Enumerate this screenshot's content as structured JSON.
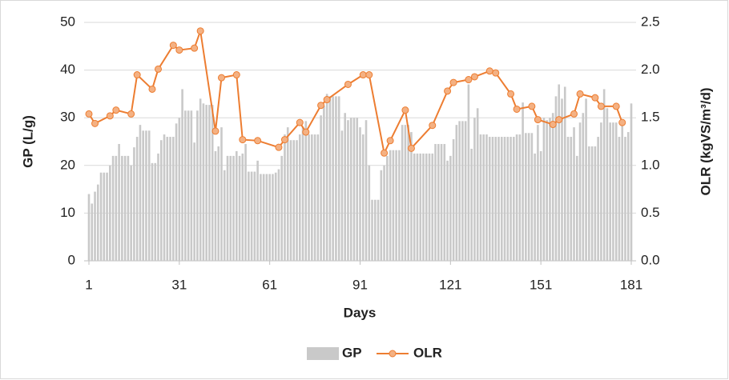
{
  "chart_data": {
    "type": "bar-line",
    "xlabel": "Days",
    "ylabel": "GP (L/g)",
    "y2label": "OLR (kgVS/m³/d)",
    "xlim": [
      1,
      181
    ],
    "xticks": [
      1,
      31,
      61,
      91,
      121,
      151,
      181
    ],
    "ylim": [
      0,
      50
    ],
    "yticks": [
      0,
      10,
      20,
      30,
      40,
      50
    ],
    "y2lim": [
      0,
      2.5
    ],
    "y2ticks": [
      {
        "value": 0,
        "label": "0.0"
      },
      {
        "value": 0.5,
        "label": "0.5"
      },
      {
        "value": 1,
        "label": "1.0"
      },
      {
        "value": 1.5,
        "label": "1.5"
      },
      {
        "value": 2,
        "label": "2.0"
      },
      {
        "value": 2.5,
        "label": "2.5"
      }
    ],
    "grid": true,
    "legend": "bottom",
    "series": [
      {
        "name": "GP",
        "type": "bar",
        "color": "#c9c9c9",
        "x": [
          1,
          2,
          3,
          4,
          5,
          6,
          7,
          8,
          9,
          10,
          11,
          12,
          13,
          14,
          15,
          16,
          17,
          18,
          19,
          20,
          21,
          22,
          23,
          24,
          25,
          26,
          27,
          28,
          29,
          30,
          31,
          32,
          33,
          34,
          35,
          36,
          37,
          38,
          39,
          40,
          41,
          42,
          43,
          44,
          45,
          46,
          47,
          48,
          49,
          50,
          51,
          52,
          53,
          54,
          55,
          56,
          57,
          58,
          59,
          60,
          61,
          62,
          63,
          64,
          65,
          66,
          67,
          68,
          69,
          70,
          71,
          72,
          73,
          74,
          75,
          76,
          77,
          78,
          79,
          80,
          81,
          82,
          83,
          84,
          85,
          86,
          87,
          88,
          89,
          90,
          91,
          92,
          93,
          94,
          95,
          96,
          97,
          98,
          99,
          100,
          101,
          102,
          103,
          104,
          105,
          106,
          107,
          108,
          109,
          110,
          111,
          112,
          113,
          114,
          115,
          116,
          117,
          118,
          119,
          120,
          121,
          122,
          123,
          124,
          125,
          126,
          127,
          128,
          129,
          130,
          131,
          132,
          133,
          134,
          135,
          136,
          137,
          138,
          139,
          140,
          141,
          142,
          143,
          144,
          145,
          146,
          147,
          148,
          149,
          150,
          151,
          152,
          153,
          154,
          155,
          156,
          157,
          158,
          159,
          160,
          161,
          162,
          163,
          164,
          165,
          166,
          167,
          168,
          169,
          170,
          171,
          172,
          173,
          174,
          175,
          176,
          177,
          178,
          179,
          180,
          181
        ],
        "values": [
          14,
          12,
          14.5,
          16,
          18.5,
          18.5,
          18.5,
          20,
          22,
          22,
          24.5,
          22,
          22,
          22,
          20,
          23.8,
          26,
          28.5,
          27.3,
          27.3,
          27.3,
          20.5,
          20.5,
          22.5,
          25.3,
          26.5,
          26,
          26,
          26,
          28.8,
          30,
          36,
          31.5,
          31.5,
          31.5,
          24.8,
          31.5,
          34,
          33,
          32.7,
          32.7,
          32.7,
          23,
          24,
          28,
          19,
          22,
          22,
          22,
          23,
          22,
          22.5,
          24.5,
          18.7,
          18.7,
          18.7,
          21,
          18.2,
          18.2,
          18.2,
          18.2,
          18.2,
          18.5,
          19.2,
          22,
          26.5,
          28,
          25.3,
          25.3,
          25.3,
          26.5,
          28,
          29.3,
          26.5,
          26.5,
          26.5,
          26.5,
          30.5,
          32.5,
          35,
          34.5,
          34.5,
          34.5,
          34.5,
          27.3,
          31,
          29.5,
          30,
          30,
          30,
          28,
          26.5,
          29.5,
          20,
          12.8,
          12.8,
          12.8,
          19,
          20,
          22,
          23.2,
          23.2,
          23.2,
          23.2,
          28.5,
          28.5,
          28.5,
          27,
          22.5,
          22.5,
          22.5,
          22.5,
          22.5,
          22.5,
          22.5,
          24.5,
          24.5,
          24.5,
          24.5,
          21,
          22,
          25.5,
          28.5,
          29.3,
          29.3,
          29.3,
          37,
          23.5,
          30,
          32,
          26.5,
          26.5,
          26.5,
          26,
          26,
          26,
          26,
          26,
          26,
          26,
          26,
          26,
          26.5,
          26.5,
          33.2,
          26.8,
          26.8,
          26.8,
          22.5,
          28.5,
          23,
          30,
          29.5,
          30,
          31,
          34.5,
          37,
          34,
          36.5,
          26,
          26,
          28,
          22,
          29,
          31,
          34,
          24,
          24,
          24,
          26,
          29,
          36,
          32,
          29,
          29,
          29,
          26,
          28.5,
          26,
          27,
          33
        ]
      },
      {
        "name": "OLR",
        "type": "line",
        "axis": "y2",
        "color": "#ed7d31",
        "marker_color": "#f4b183",
        "x": [
          1,
          3,
          8,
          10,
          15,
          17,
          22,
          24,
          29,
          31,
          36,
          38,
          43,
          45,
          50,
          52,
          57,
          64,
          66,
          71,
          73,
          78,
          80,
          87,
          92,
          94,
          99,
          101,
          106,
          108,
          115,
          120,
          122,
          127,
          129,
          134,
          136,
          141,
          143,
          148,
          150,
          155,
          157,
          162,
          164,
          169,
          171,
          176,
          178
        ],
        "values": [
          1.54,
          1.44,
          1.52,
          1.58,
          1.54,
          1.95,
          1.8,
          2.01,
          2.26,
          2.21,
          2.23,
          2.41,
          1.36,
          1.92,
          1.95,
          1.27,
          1.26,
          1.19,
          1.27,
          1.45,
          1.35,
          1.63,
          1.69,
          1.85,
          1.95,
          1.95,
          1.13,
          1.26,
          1.58,
          1.18,
          1.42,
          1.78,
          1.87,
          1.9,
          1.93,
          1.99,
          1.97,
          1.75,
          1.59,
          1.62,
          1.48,
          1.43,
          1.48,
          1.54,
          1.75,
          1.71,
          1.62,
          1.62,
          1.45
        ]
      }
    ]
  }
}
